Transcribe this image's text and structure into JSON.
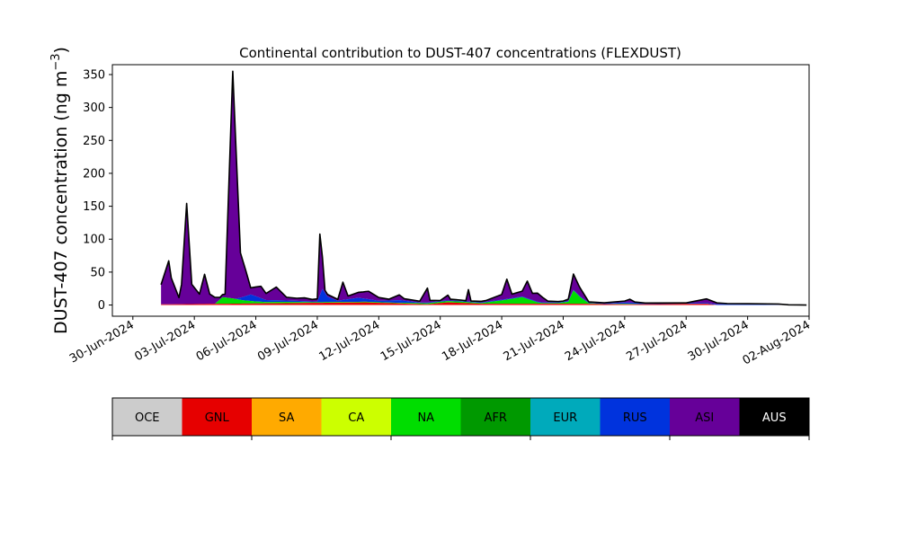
{
  "chart_data": {
    "type": "area",
    "title": "Continental contribution to DUST-407 concentrations (FLEXDUST)",
    "ylabel_main": "DUST-407 concentration (ng m",
    "ylabel_sup": "−3",
    "ylabel_close": ")",
    "xlabel": "",
    "ylim": [
      -17,
      365
    ],
    "xlim": [
      "2024-06-29",
      "2024-08-02"
    ],
    "y_ticks": [
      0,
      50,
      100,
      150,
      200,
      250,
      300,
      350
    ],
    "x_ticks": [
      {
        "date": "2024-06-30",
        "label": "30-Jun-2024"
      },
      {
        "date": "2024-07-03",
        "label": "03-Jul-2024"
      },
      {
        "date": "2024-07-06",
        "label": "06-Jul-2024"
      },
      {
        "date": "2024-07-09",
        "label": "09-Jul-2024"
      },
      {
        "date": "2024-07-12",
        "label": "12-Jul-2024"
      },
      {
        "date": "2024-07-15",
        "label": "15-Jul-2024"
      },
      {
        "date": "2024-07-18",
        "label": "18-Jul-2024"
      },
      {
        "date": "2024-07-21",
        "label": "21-Jul-2024"
      },
      {
        "date": "2024-07-24",
        "label": "24-Jul-2024"
      },
      {
        "date": "2024-07-27",
        "label": "27-Jul-2024"
      },
      {
        "date": "2024-07-30",
        "label": "30-Jul-2024"
      },
      {
        "date": "2024-08-02",
        "label": "02-Aug-2024"
      }
    ],
    "stack_order": [
      "GNL",
      "NA",
      "RUS",
      "ASI"
    ],
    "series": [
      {
        "name": "GNL",
        "color": "#e60000",
        "points": [
          [
            "2024-07-01 09:00",
            1
          ],
          [
            "2024-07-11 09:00",
            4
          ],
          [
            "2024-07-14 09:00",
            1
          ],
          [
            "2024-07-15 09:00",
            4
          ],
          [
            "2024-07-17 00:00",
            2
          ],
          [
            "2024-07-21 12:00",
            2
          ],
          [
            "2024-07-24 00:00",
            1
          ],
          [
            "2024-07-28 00:00",
            2
          ]
        ]
      },
      {
        "name": "NA",
        "color": "#00dd00",
        "points": [
          [
            "2024-07-01 09:00",
            0
          ],
          [
            "2024-07-04 00:00",
            0
          ],
          [
            "2024-07-04 09:00",
            10
          ],
          [
            "2024-07-04 21:00",
            8
          ],
          [
            "2024-07-05 09:00",
            5
          ],
          [
            "2024-07-06 00:00",
            3
          ],
          [
            "2024-07-06 12:00",
            2
          ],
          [
            "2024-07-07 00:00",
            2
          ],
          [
            "2024-07-09 00:00",
            1
          ],
          [
            "2024-07-11 00:00",
            1
          ],
          [
            "2024-07-13 00:00",
            1
          ],
          [
            "2024-07-15 00:00",
            2
          ],
          [
            "2024-07-16 00:00",
            2
          ],
          [
            "2024-07-17 00:00",
            1
          ],
          [
            "2024-07-18 00:00",
            5
          ],
          [
            "2024-07-19 00:00",
            10
          ],
          [
            "2024-07-19 18:00",
            2
          ],
          [
            "2024-07-20 00:00",
            1
          ],
          [
            "2024-07-20 18:00",
            1
          ],
          [
            "2024-07-21 06:00",
            3
          ],
          [
            "2024-07-21 12:00",
            20
          ],
          [
            "2024-07-21 20:00",
            10
          ],
          [
            "2024-07-22 06:00",
            1
          ],
          [
            "2024-07-23 00:00",
            0
          ],
          [
            "2024-07-24 00:00",
            1
          ],
          [
            "2024-07-25 00:00",
            0
          ],
          [
            "2024-08-01 21:00",
            0
          ]
        ]
      },
      {
        "name": "RUS",
        "color": "#0033dd",
        "points": [
          [
            "2024-07-01 09:00",
            0
          ],
          [
            "2024-07-05 00:00",
            0
          ],
          [
            "2024-07-05 18:00",
            10
          ],
          [
            "2024-07-06 00:00",
            8
          ],
          [
            "2024-07-06 12:00",
            3
          ],
          [
            "2024-07-09 00:00",
            1
          ],
          [
            "2024-07-09 06:00",
            20
          ],
          [
            "2024-07-09 12:00",
            8
          ],
          [
            "2024-07-10 00:00",
            2
          ],
          [
            "2024-07-11 00:00",
            6
          ],
          [
            "2024-07-12 00:00",
            2
          ],
          [
            "2024-07-13 00:00",
            4
          ],
          [
            "2024-07-14 00:00",
            1
          ],
          [
            "2024-07-17 00:00",
            1
          ],
          [
            "2024-07-23 00:00",
            1
          ],
          [
            "2024-07-24 00:00",
            2
          ],
          [
            "2024-07-30 00:00",
            1
          ],
          [
            "2024-08-01 21:00",
            0
          ]
        ]
      },
      {
        "name": "ASI",
        "color": "#660099",
        "points": [
          [
            "2024-07-01 09:00",
            30
          ],
          [
            "2024-07-01 18:00",
            66
          ],
          [
            "2024-07-01 21:00",
            40
          ],
          [
            "2024-07-02 06:00",
            10
          ],
          [
            "2024-07-02 09:00",
            30
          ],
          [
            "2024-07-02 15:00",
            153
          ],
          [
            "2024-07-02 21:00",
            30
          ],
          [
            "2024-07-03 06:00",
            15
          ],
          [
            "2024-07-03 12:00",
            45
          ],
          [
            "2024-07-03 18:00",
            15
          ],
          [
            "2024-07-04 00:00",
            10
          ],
          [
            "2024-07-04 06:00",
            3
          ],
          [
            "2024-07-04 12:00",
            5
          ],
          [
            "2024-07-04 21:00",
            345
          ],
          [
            "2024-07-05 06:00",
            68
          ],
          [
            "2024-07-05 12:00",
            40
          ],
          [
            "2024-07-05 18:00",
            10
          ],
          [
            "2024-07-06 06:00",
            18
          ],
          [
            "2024-07-06 12:00",
            10
          ],
          [
            "2024-07-07 00:00",
            20
          ],
          [
            "2024-07-07 12:00",
            5
          ],
          [
            "2024-07-08 00:00",
            4
          ],
          [
            "2024-07-08 09:00",
            5
          ],
          [
            "2024-07-08 18:00",
            3
          ],
          [
            "2024-07-09 00:00",
            4
          ],
          [
            "2024-07-09 03:00",
            93
          ],
          [
            "2024-07-09 09:00",
            4
          ],
          [
            "2024-07-10 00:00",
            2
          ],
          [
            "2024-07-10 06:00",
            27
          ],
          [
            "2024-07-10 12:00",
            5
          ],
          [
            "2024-07-11 06:00",
            10
          ],
          [
            "2024-07-11 12:00",
            12
          ],
          [
            "2024-07-12 00:00",
            5
          ],
          [
            "2024-07-12 12:00",
            2
          ],
          [
            "2024-07-13 00:00",
            8
          ],
          [
            "2024-07-13 06:00",
            3
          ],
          [
            "2024-07-14 00:00",
            2
          ],
          [
            "2024-07-14 09:00",
            22
          ],
          [
            "2024-07-14 12:00",
            3
          ],
          [
            "2024-07-15 00:00",
            1
          ],
          [
            "2024-07-15 09:00",
            8
          ],
          [
            "2024-07-15 12:00",
            2
          ],
          [
            "2024-07-16 06:00",
            1
          ],
          [
            "2024-07-16 09:00",
            18
          ],
          [
            "2024-07-16 12:00",
            1
          ],
          [
            "2024-07-17 06:00",
            2
          ],
          [
            "2024-07-18 00:00",
            8
          ],
          [
            "2024-07-18 06:00",
            30
          ],
          [
            "2024-07-18 12:00",
            6
          ],
          [
            "2024-07-19 00:00",
            8
          ],
          [
            "2024-07-19 06:00",
            26
          ],
          [
            "2024-07-19 12:00",
            10
          ],
          [
            "2024-07-19 18:00",
            13
          ],
          [
            "2024-07-20 06:00",
            2
          ],
          [
            "2024-07-21 00:00",
            1
          ],
          [
            "2024-07-21 06:00",
            3
          ],
          [
            "2024-07-21 12:00",
            24
          ],
          [
            "2024-07-21 18:00",
            15
          ],
          [
            "2024-07-22 06:00",
            1
          ],
          [
            "2024-07-23 00:00",
            1
          ],
          [
            "2024-07-24 00:00",
            2
          ],
          [
            "2024-07-24 06:00",
            5
          ],
          [
            "2024-07-24 12:00",
            1
          ],
          [
            "2024-07-25 00:00",
            0
          ],
          [
            "2024-07-27 00:00",
            0
          ],
          [
            "2024-07-28 00:00",
            6
          ],
          [
            "2024-07-28 12:00",
            2
          ],
          [
            "2024-07-29 00:00",
            1
          ],
          [
            "2024-07-30 00:00",
            1
          ],
          [
            "2024-07-30 12:00",
            1
          ],
          [
            "2024-07-31 12:00",
            1
          ],
          [
            "2024-08-01 00:00",
            0
          ],
          [
            "2024-08-01 21:00",
            0
          ]
        ]
      }
    ],
    "legend": {
      "placement": "bottom",
      "items": [
        {
          "name": "OCE",
          "color": "#cccccc",
          "text_color": "#000000"
        },
        {
          "name": "GNL",
          "color": "#e60000",
          "text_color": "#000000"
        },
        {
          "name": "SA",
          "color": "#ffaa00",
          "text_color": "#000000"
        },
        {
          "name": "CA",
          "color": "#ccff00",
          "text_color": "#000000"
        },
        {
          "name": "NA",
          "color": "#00dd00",
          "text_color": "#000000"
        },
        {
          "name": "AFR",
          "color": "#009900",
          "text_color": "#000000"
        },
        {
          "name": "EUR",
          "color": "#00aabb",
          "text_color": "#000000"
        },
        {
          "name": "RUS",
          "color": "#0033dd",
          "text_color": "#000000"
        },
        {
          "name": "ASI",
          "color": "#660099",
          "text_color": "#000000"
        },
        {
          "name": "AUS",
          "color": "#000000",
          "text_color": "#ffffff"
        }
      ]
    },
    "grid": false
  }
}
